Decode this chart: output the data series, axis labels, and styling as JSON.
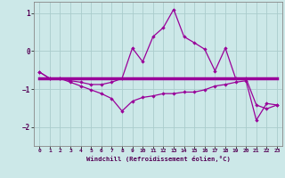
{
  "xlabel": "Windchill (Refroidissement éolien,°C)",
  "x_hours": [
    0,
    1,
    2,
    3,
    4,
    5,
    6,
    7,
    8,
    9,
    10,
    11,
    12,
    13,
    14,
    15,
    16,
    17,
    18,
    19,
    20,
    21,
    22,
    23
  ],
  "line1_y": [
    -0.55,
    -0.72,
    -0.72,
    -0.78,
    -0.82,
    -0.88,
    -0.88,
    -0.82,
    -0.72,
    0.08,
    -0.28,
    0.38,
    0.62,
    1.1,
    0.38,
    0.22,
    0.05,
    -0.52,
    0.08,
    -0.72,
    -0.72,
    -1.42,
    -1.52,
    -1.42
  ],
  "line2_y": [
    -0.55,
    -0.72,
    -0.72,
    -0.82,
    -0.92,
    -1.02,
    -1.12,
    -1.25,
    -1.58,
    -1.32,
    -1.22,
    -1.18,
    -1.12,
    -1.12,
    -1.08,
    -1.08,
    -1.02,
    -0.92,
    -0.88,
    -0.82,
    -0.78,
    -1.82,
    -1.38,
    -1.42
  ],
  "line3_y": [
    -0.72,
    -0.72,
    -0.72,
    -0.72,
    -0.72,
    -0.72,
    -0.72,
    -0.72,
    -0.72,
    -0.72,
    -0.72,
    -0.72,
    -0.72,
    -0.72,
    -0.72,
    -0.72,
    -0.72,
    -0.72,
    -0.72,
    -0.72,
    -0.72,
    -0.72,
    -0.72,
    -0.72
  ],
  "line_color": "#990099",
  "bg_color": "#cce8e8",
  "grid_color": "#aacccc",
  "ylim": [
    -2.5,
    1.3
  ],
  "yticks": [
    -2,
    -1,
    0,
    1
  ],
  "xlim": [
    -0.5,
    23.5
  ],
  "xticks": [
    0,
    1,
    2,
    3,
    4,
    5,
    6,
    7,
    8,
    9,
    10,
    11,
    12,
    13,
    14,
    15,
    16,
    17,
    18,
    19,
    20,
    21,
    22,
    23
  ]
}
